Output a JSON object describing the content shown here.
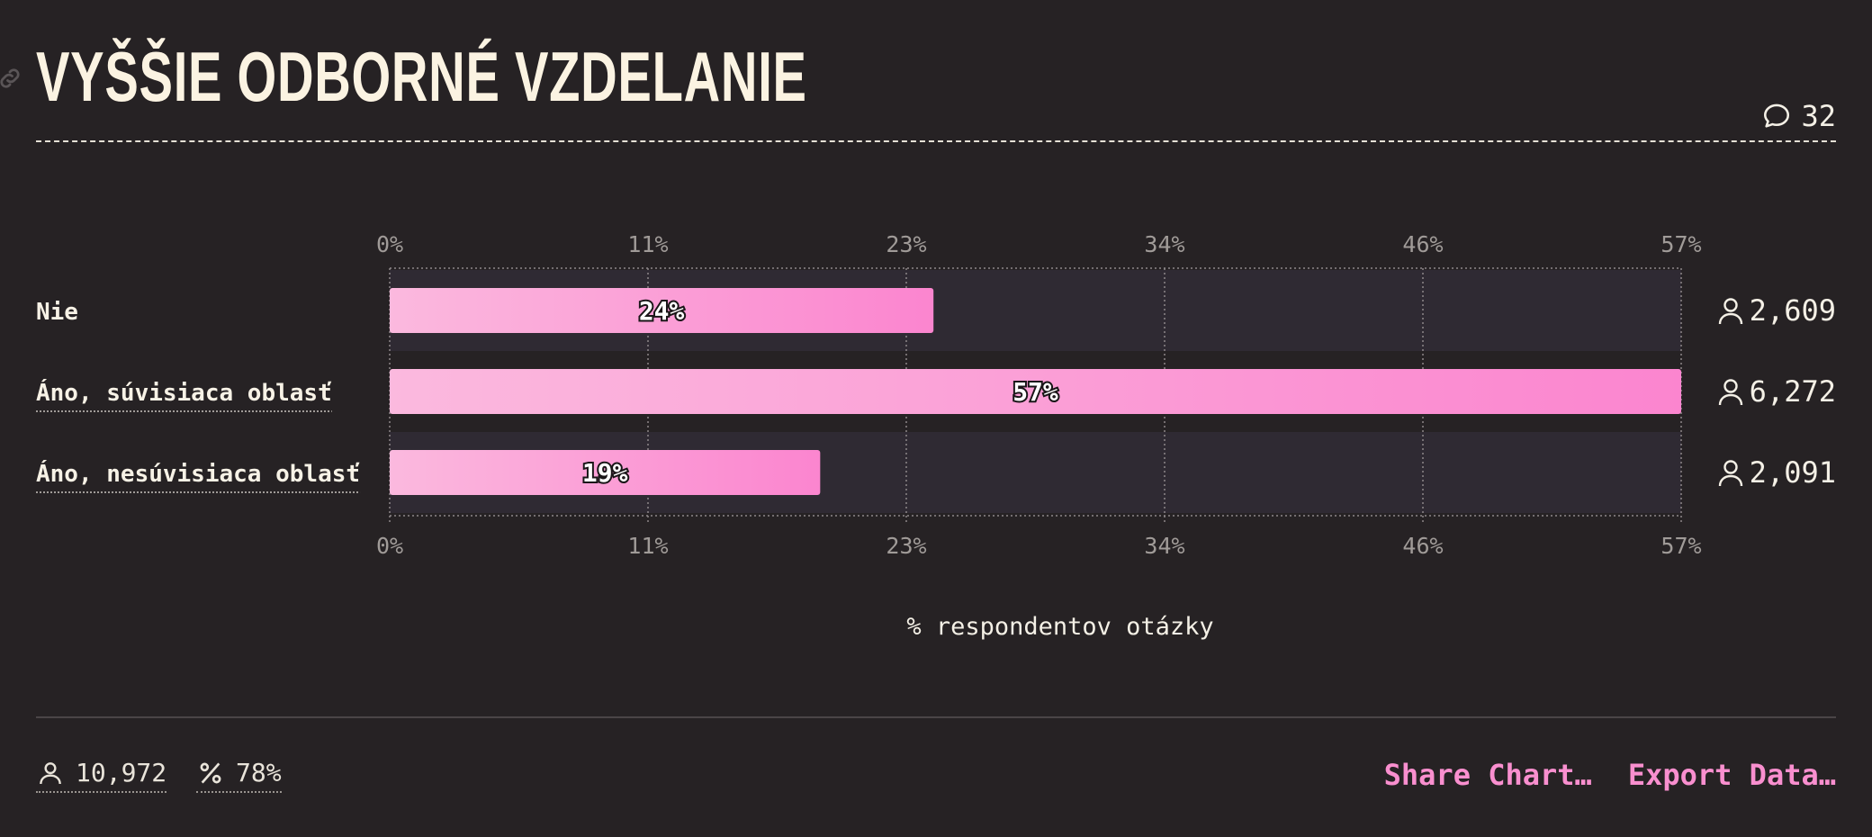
{
  "header": {
    "title": "VYŠŠIE ODBORNÉ VZDELANIE",
    "comment_count": "32"
  },
  "chart_data": {
    "type": "bar",
    "orientation": "horizontal",
    "title": "VYŠŠIE ODBORNÉ VZDELANIE",
    "xlabel": "% respondentov otázky",
    "ylabel": "",
    "xlim": [
      0,
      57
    ],
    "x_ticks": [
      "0%",
      "11%",
      "23%",
      "34%",
      "46%",
      "57%"
    ],
    "categories": [
      "Nie",
      "Áno, súvisiaca oblasť",
      "Áno, nesúvisiaca oblasť"
    ],
    "values": [
      24,
      57,
      19
    ],
    "value_labels": [
      "24%",
      "57%",
      "19%"
    ],
    "counts": [
      "2,609",
      "6,272",
      "2,091"
    ],
    "grid": true,
    "colors": {
      "bar_start": "#fbb9de",
      "bar_end": "#fb85cf",
      "track": "#2f2a33"
    }
  },
  "footer": {
    "respondents": "10,972",
    "percent": "78%",
    "share_label": "Share Chart…",
    "export_label": "Export Data…"
  }
}
